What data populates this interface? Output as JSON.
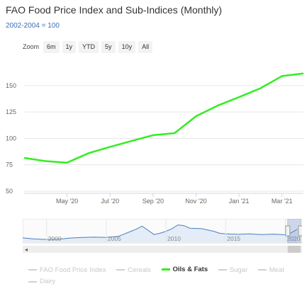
{
  "header": {
    "title": "FAO Food Price Index and Sub-Indices (Monthly)",
    "subtitle": "2002-2004 = 100"
  },
  "range_selector": {
    "zoom_label": "Zoom",
    "buttons": [
      "6m",
      "1y",
      "YTD",
      "5y",
      "10y",
      "All"
    ]
  },
  "colors": {
    "series": "#33ee22",
    "navigator_line": "#4a7fc1",
    "grid": "#e6e6e6"
  },
  "chart_data": {
    "type": "line",
    "series": [
      {
        "name": "Oils & Fats",
        "x": [
          "2020-03",
          "2020-04",
          "2020-05",
          "2020-06",
          "2020-07",
          "2020-08",
          "2020-09",
          "2020-10",
          "2020-11",
          "2020-12",
          "2021-01",
          "2021-02",
          "2021-03",
          "2021-04"
        ],
        "values": [
          81.5,
          78.5,
          77.0,
          86.0,
          92.0,
          97.5,
          103.0,
          105.0,
          121.0,
          131.0,
          139.0,
          147.5,
          159.0,
          161.5
        ]
      }
    ],
    "xlabel": "",
    "ylabel": "",
    "x_ticks": [
      "May '20",
      "Jul '20",
      "Sep '20",
      "Nov '20",
      "Jan '21",
      "Mar '21"
    ],
    "y_ticks": [
      50,
      75,
      100,
      125,
      150
    ],
    "ylim": [
      48,
      172
    ],
    "grid": true,
    "legend_position": "bottom"
  },
  "navigator": {
    "labels": [
      "2000",
      "2005",
      "2010",
      "2015",
      "2020"
    ],
    "x_range": [
      1998,
      2021.4
    ],
    "selected_range": [
      2020.2,
      2021.3
    ],
    "series": {
      "x": [
        1998,
        1999,
        2000,
        2001,
        2002,
        2003,
        2004,
        2005,
        2006,
        2007,
        2007.5,
        2008,
        2008.5,
        2009,
        2009.5,
        2010,
        2010.5,
        2011,
        2011.5,
        2012,
        2013,
        2014,
        2014.5,
        2015,
        2016,
        2017,
        2018,
        2019,
        2020,
        2020.5,
        2021
      ],
      "values": [
        85,
        74,
        70,
        72,
        84,
        90,
        92,
        90,
        100,
        146,
        170,
        200,
        160,
        118,
        130,
        150,
        175,
        212,
        205,
        180,
        175,
        150,
        130,
        125,
        120,
        125,
        118,
        122,
        116,
        135,
        170
      ]
    }
  },
  "legend": {
    "items": [
      {
        "label": "FAO Food Price Index",
        "active": false
      },
      {
        "label": "Cereals",
        "active": false
      },
      {
        "label": "Oils & Fats",
        "active": true
      },
      {
        "label": "Sugar",
        "active": false
      },
      {
        "label": "Meat",
        "active": false
      },
      {
        "label": "Dairy",
        "active": false
      }
    ]
  }
}
